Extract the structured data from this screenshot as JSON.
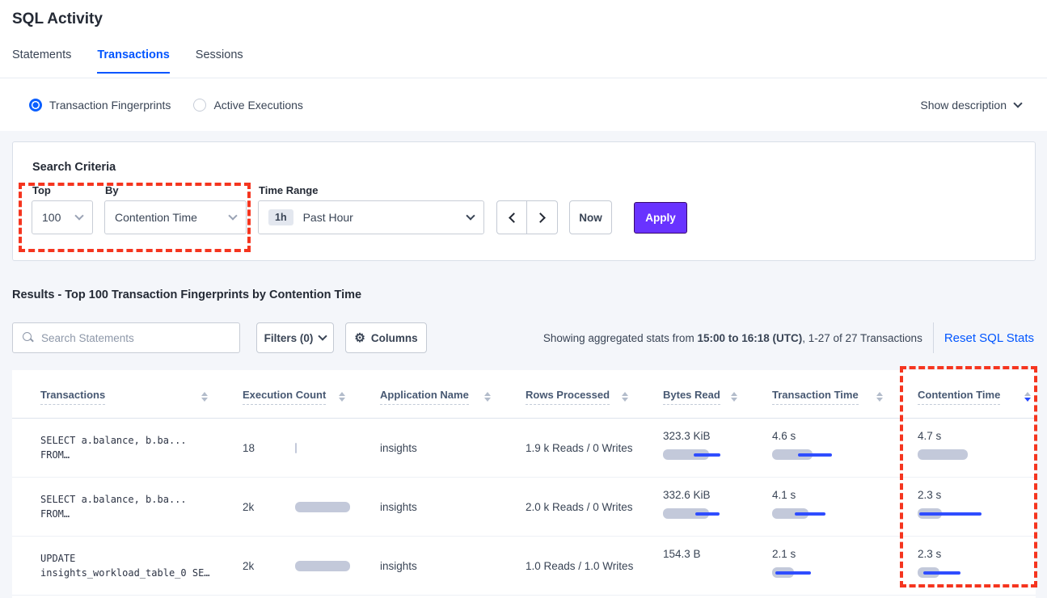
{
  "colors": {
    "accent_blue": "#0055ff",
    "apply_purple": "#6933ff",
    "annotation_red": "#f5351f",
    "bar_gray": "#c3c9da",
    "bar_blue": "#2f4dff"
  },
  "header": {
    "title": "SQL Activity",
    "tabs": [
      {
        "label": "Statements"
      },
      {
        "label": "Transactions"
      },
      {
        "label": "Sessions"
      }
    ],
    "active_tab": "Transactions"
  },
  "view_bar": {
    "fingerprints_label": "Transaction Fingerprints",
    "executions_label": "Active Executions",
    "selected": "Transaction Fingerprints",
    "show_description_label": "Show description"
  },
  "criteria": {
    "heading": "Search Criteria",
    "top_label": "Top",
    "top_value": "100",
    "by_label": "By",
    "by_value": "Contention Time",
    "time_label": "Time Range",
    "time_badge": "1h",
    "time_value": "Past Hour",
    "now_label": "Now",
    "apply_label": "Apply"
  },
  "results": {
    "heading": "Results - Top 100 Transaction Fingerprints by Contention Time",
    "search_placeholder": "Search Statements",
    "filters_label": "Filters (0)",
    "columns_label": "Columns",
    "stats_prefix": "Showing aggregated stats from ",
    "stats_range": "15:00 to 16:18 (UTC)",
    "stats_suffix": ", 1-27 of 27 Transactions",
    "reset_label": "Reset SQL Stats"
  },
  "table": {
    "headers": [
      "Transactions",
      "Execution Count",
      "Application Name",
      "Rows Processed",
      "Bytes Read",
      "Transaction Time",
      "Contention Time"
    ],
    "sorted_by": "Contention Time",
    "sort_direction": "desc",
    "rows": [
      {
        "sql_line1": "SELECT a.balance, b.ba...",
        "sql_line2": "FROM…",
        "exec_count": "18",
        "exec_bar": {
          "bar": 2
        },
        "app": "insights",
        "rows_processed": "1.9 k Reads / 0 Writes",
        "bytes_read": "323.3 KiB",
        "bytes_bar": {
          "bar": 57,
          "line_l": 38,
          "line_w": 33
        },
        "txn_time": "4.6 s",
        "txn_bar": {
          "bar": 50,
          "line_l": 32,
          "line_w": 42
        },
        "contention": "4.7 s",
        "contention_bar": {
          "bar": 62,
          "line_l": 0,
          "line_w": 0
        }
      },
      {
        "sql_line1": "SELECT a.balance, b.ba...",
        "sql_line2": "FROM…",
        "exec_count": "2k",
        "exec_bar": {
          "bar": 68
        },
        "app": "insights",
        "rows_processed": "2.0 k Reads / 0 Writes",
        "bytes_read": "332.6 KiB",
        "bytes_bar": {
          "bar": 57,
          "line_l": 40,
          "line_w": 30
        },
        "txn_time": "4.1 s",
        "txn_bar": {
          "bar": 45,
          "line_l": 28,
          "line_w": 38
        },
        "contention": "2.3 s",
        "contention_bar": {
          "bar": 30,
          "line_l": 2,
          "line_w": 77
        }
      },
      {
        "sql_line1": "UPDATE",
        "sql_line2": "insights_workload_table_0 SE…",
        "exec_count": "2k",
        "exec_bar": {
          "bar": 68
        },
        "app": "insights",
        "rows_processed": "1.0 Reads / 1.0 Writes",
        "bytes_read": "154.3 B",
        "bytes_bar": {
          "bar": 0,
          "line_l": 0,
          "line_w": 0
        },
        "txn_time": "2.1 s",
        "txn_bar": {
          "bar": 27,
          "line_l": 4,
          "line_w": 44
        },
        "contention": "2.3 s",
        "contention_bar": {
          "bar": 27,
          "line_l": 7,
          "line_w": 46
        }
      }
    ]
  }
}
